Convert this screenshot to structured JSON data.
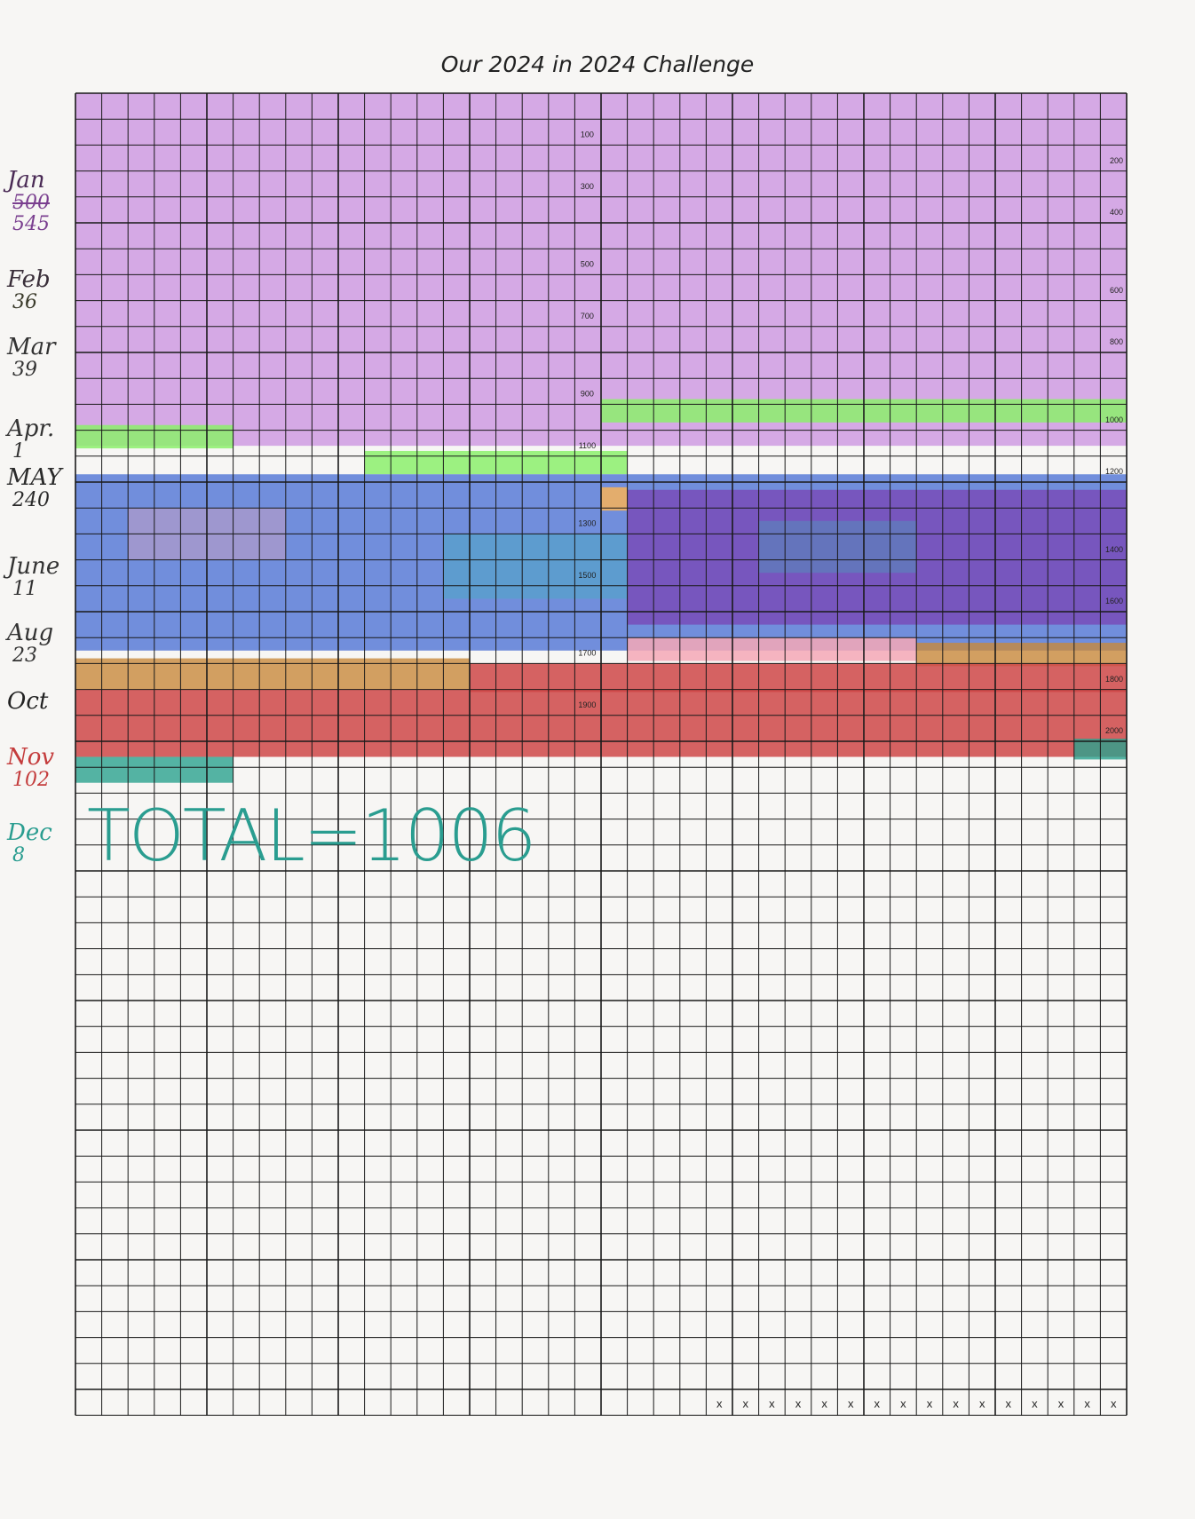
{
  "title": "Our 2024 in 2024 Challenge",
  "total_text": "TOTAL=1006",
  "goal": 2024,
  "total": 1006,
  "months": [
    {
      "name": "Jan",
      "struck": "500",
      "value": "545",
      "color": "#c88ee0",
      "label_color": "#4a2a55",
      "value_color": "#7a3f8f"
    },
    {
      "name": "Feb",
      "struck": "",
      "value": "36",
      "color": "#8ef06e",
      "label_color": "#3a2f3a",
      "value_color": "#3a3a2a"
    },
    {
      "name": "Mar",
      "struck": "",
      "value": "39",
      "color": "#e8b070",
      "label_color": "#333",
      "value_color": "#333"
    },
    {
      "name": "Apr.",
      "struck": "",
      "value": "1",
      "color": "#f0b060",
      "label_color": "#333",
      "value_color": "#333"
    },
    {
      "name": "MAY",
      "struck": "",
      "value": "240",
      "color": "#5b4fc0",
      "label_color": "#2a2a2a",
      "value_color": "#2a2a2a"
    },
    {
      "name": "June",
      "struck": "",
      "value": "11",
      "color": "#f2a6b6",
      "label_color": "#333",
      "value_color": "#333"
    },
    {
      "name": "Aug",
      "struck": "",
      "value": "23",
      "color": "#c4883a",
      "label_color": "#333",
      "value_color": "#333"
    },
    {
      "name": "Oct",
      "struck": "",
      "value": "",
      "color": "#cf4545",
      "label_color": "#222",
      "value_color": "#222"
    },
    {
      "name": "Nov",
      "struck": "",
      "value": "102",
      "color": "#d14545",
      "label_color": "#c43c3c",
      "value_color": "#c43c3c"
    },
    {
      "name": "Dec",
      "struck": "",
      "value": "8",
      "color": "#2a9d90",
      "label_color": "#2a9d90",
      "value_color": "#2a9d90"
    }
  ],
  "grid_labels": [
    "100",
    "200",
    "300",
    "400",
    "500",
    "600",
    "700",
    "800",
    "900",
    "1000",
    "1100",
    "1200",
    "1300",
    "1400",
    "1500",
    "1600",
    "1700",
    "1800",
    "1900",
    "2000"
  ],
  "x_mark": "x",
  "x_mark_count": 16,
  "colors": {
    "grid": "#1a1a1a",
    "jan": "#c98fe0",
    "green": "#8cf06c",
    "blue": "#4f74d6",
    "purple": "#7a3fb0",
    "teal": "#39b8b8",
    "pink": "#f4a8b6",
    "orange": "#c88a3c",
    "red": "#cf4848",
    "dec": "#2aa38f"
  }
}
